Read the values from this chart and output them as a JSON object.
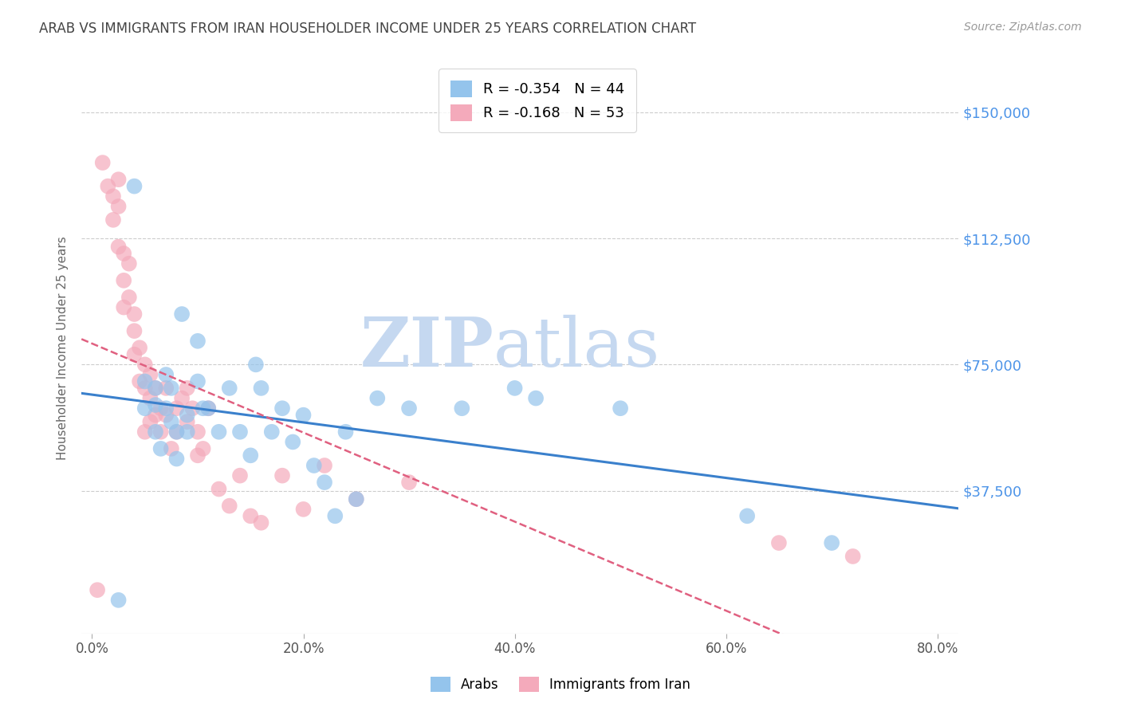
{
  "title": "ARAB VS IMMIGRANTS FROM IRAN HOUSEHOLDER INCOME UNDER 25 YEARS CORRELATION CHART",
  "source": "Source: ZipAtlas.com",
  "ylabel": "Householder Income Under 25 years",
  "xlabel_ticks": [
    "0.0%",
    "20.0%",
    "40.0%",
    "60.0%",
    "80.0%"
  ],
  "xlabel_vals": [
    0.0,
    0.2,
    0.4,
    0.6,
    0.8
  ],
  "ytick_labels": [
    "$150,000",
    "$112,500",
    "$75,000",
    "$37,500"
  ],
  "ytick_vals": [
    150000,
    112500,
    75000,
    37500
  ],
  "ylim": [
    -5000,
    165000
  ],
  "xlim": [
    -0.01,
    0.82
  ],
  "background_color": "#ffffff",
  "grid_color": "#cccccc",
  "watermark_zip": "ZIP",
  "watermark_atlas": "atlas",
  "watermark_color": "#c5d8f0",
  "legend_R_arab": "-0.354",
  "legend_N_arab": "44",
  "legend_R_iran": "-0.168",
  "legend_N_iran": "53",
  "arab_color": "#94C4EC",
  "iran_color": "#F4AABB",
  "title_color": "#444444",
  "axis_label_color": "#666666",
  "tick_color_y": "#4d94e8",
  "tick_color_x": "#555555",
  "arab_line_color": "#3a80cc",
  "iran_line_color": "#e06080",
  "arab_points_x": [
    0.025,
    0.04,
    0.05,
    0.05,
    0.06,
    0.06,
    0.06,
    0.065,
    0.07,
    0.07,
    0.075,
    0.075,
    0.08,
    0.08,
    0.085,
    0.09,
    0.09,
    0.1,
    0.1,
    0.105,
    0.11,
    0.12,
    0.13,
    0.14,
    0.15,
    0.155,
    0.16,
    0.17,
    0.18,
    0.19,
    0.2,
    0.21,
    0.22,
    0.23,
    0.24,
    0.25,
    0.27,
    0.3,
    0.35,
    0.4,
    0.42,
    0.5,
    0.62,
    0.7
  ],
  "arab_points_y": [
    5000,
    128000,
    70000,
    62000,
    68000,
    63000,
    55000,
    50000,
    72000,
    62000,
    68000,
    58000,
    55000,
    47000,
    90000,
    60000,
    55000,
    82000,
    70000,
    62000,
    62000,
    55000,
    68000,
    55000,
    48000,
    75000,
    68000,
    55000,
    62000,
    52000,
    60000,
    45000,
    40000,
    30000,
    55000,
    35000,
    65000,
    62000,
    62000,
    68000,
    65000,
    62000,
    30000,
    22000
  ],
  "iran_points_x": [
    0.005,
    0.01,
    0.015,
    0.02,
    0.02,
    0.025,
    0.025,
    0.025,
    0.03,
    0.03,
    0.03,
    0.035,
    0.035,
    0.04,
    0.04,
    0.04,
    0.045,
    0.045,
    0.05,
    0.05,
    0.05,
    0.055,
    0.055,
    0.055,
    0.06,
    0.06,
    0.065,
    0.065,
    0.07,
    0.07,
    0.075,
    0.08,
    0.08,
    0.085,
    0.09,
    0.09,
    0.095,
    0.1,
    0.1,
    0.105,
    0.11,
    0.12,
    0.13,
    0.14,
    0.15,
    0.16,
    0.18,
    0.2,
    0.22,
    0.25,
    0.3,
    0.65,
    0.72
  ],
  "iran_points_y": [
    8000,
    135000,
    128000,
    125000,
    118000,
    130000,
    122000,
    110000,
    108000,
    100000,
    92000,
    105000,
    95000,
    90000,
    85000,
    78000,
    80000,
    70000,
    75000,
    68000,
    55000,
    72000,
    65000,
    58000,
    68000,
    60000,
    62000,
    55000,
    68000,
    60000,
    50000,
    62000,
    55000,
    65000,
    68000,
    58000,
    62000,
    55000,
    48000,
    50000,
    62000,
    38000,
    33000,
    42000,
    30000,
    28000,
    42000,
    32000,
    45000,
    35000,
    40000,
    22000,
    18000
  ]
}
